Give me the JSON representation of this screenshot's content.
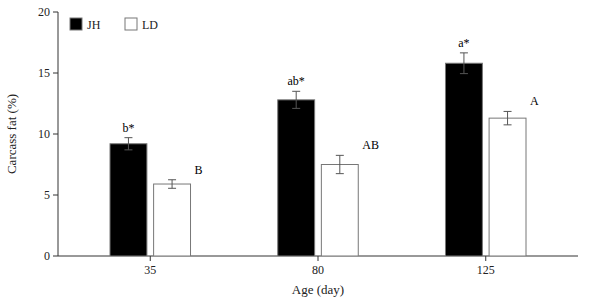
{
  "chart_data": {
    "type": "bar",
    "xlabel": "Age (day)",
    "ylabel": "Carcass fat (%)",
    "categories": [
      "35",
      "80",
      "125"
    ],
    "series": [
      {
        "name": "JH",
        "color": "#000000",
        "values": [
          9.2,
          12.8,
          15.8
        ],
        "errors": [
          0.5,
          0.7,
          0.85
        ],
        "annotations": [
          "b*",
          "ab*",
          "a*"
        ]
      },
      {
        "name": "LD",
        "color": "#ffffff",
        "values": [
          5.9,
          7.5,
          11.3
        ],
        "errors": [
          0.35,
          0.75,
          0.55
        ],
        "annotations": [
          "B",
          "AB",
          "A"
        ]
      }
    ],
    "ylim": [
      0,
      20
    ],
    "yticks": [
      0,
      5,
      10,
      15,
      20
    ],
    "legend": "upper left",
    "grid": false
  }
}
